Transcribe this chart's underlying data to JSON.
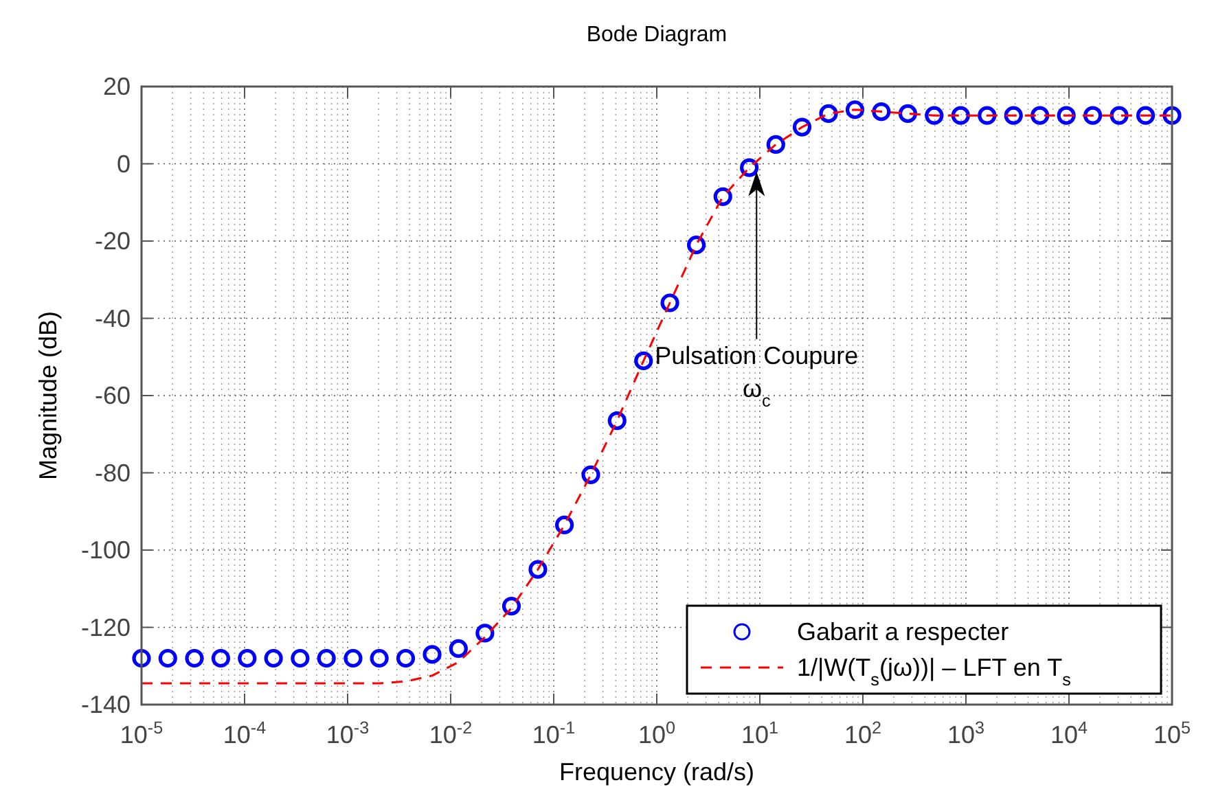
{
  "chart_data": {
    "type": "scatter",
    "title": "Bode Diagram",
    "xlabel": "Frequency (rad/s)",
    "ylabel": "Magnitude (dB)",
    "log": "x",
    "grid": true,
    "legend": "bottom right",
    "xlim": [
      1e-05,
      100000.0
    ],
    "ylim": [
      -140,
      20
    ],
    "xticks": [
      {
        "value": 1e-05,
        "label": "10$^{-5}$"
      },
      {
        "value": 0.0001,
        "label": "10$^{-4}$"
      },
      {
        "value": 0.001,
        "label": "10$^{-3}$"
      },
      {
        "value": 0.01,
        "label": "10$^{-2}$"
      },
      {
        "value": 0.1,
        "label": "10$^{-1}$"
      },
      {
        "value": 1,
        "label": "10$^{0}$"
      },
      {
        "value": 10,
        "label": "10$^{1}$"
      },
      {
        "value": 100,
        "label": "10$^{2}$"
      },
      {
        "value": 1000,
        "label": "10$^{3}$"
      },
      {
        "value": 10000,
        "label": "10$^{4}$"
      },
      {
        "value": 100000,
        "label": "10$^{5}$"
      }
    ],
    "yticks": [
      -140,
      -120,
      -100,
      -80,
      -60,
      -40,
      -20,
      0,
      20
    ],
    "x": [
      1e-05,
      1.8e-05,
      3.26e-05,
      5.88e-05,
      0.000106,
      0.000191,
      0.000346,
      0.000623,
      0.00113,
      0.00203,
      0.00366,
      0.00661,
      0.0119,
      0.0215,
      0.0389,
      0.0702,
      0.127,
      0.229,
      0.412,
      0.744,
      1.34,
      2.42,
      4.38,
      7.9,
      14.3,
      25.7,
      46.4,
      83.8,
      151,
      273,
      492,
      889,
      1604,
      2894,
      5223,
      9427,
      17013,
      30703,
      55412,
      100000
    ],
    "series": [
      {
        "name": "Gabarit a respecter",
        "marker": "circle",
        "color": "#0000ff",
        "values": [
          -128,
          -128,
          -128,
          -128,
          -128,
          -128,
          -128,
          -128,
          -128,
          -128,
          -128,
          -127,
          -125.5,
          -121.5,
          -114.5,
          -105,
          -93.5,
          -80.5,
          -66.5,
          -51,
          -36,
          -21,
          -8.5,
          -1,
          5,
          9.5,
          13,
          14,
          13.5,
          13,
          12.5,
          12.5,
          12.5,
          12.5,
          12.5,
          12.5,
          12.5,
          12.5,
          12.5,
          12.5
        ]
      },
      {
        "name": "1/|W(T$_{s}$(jω))| – LFT en T$_{s}$",
        "type": "line",
        "line_style": "dashed",
        "color": "#ff0000",
        "values": [
          -134.5,
          -134.5,
          -134.5,
          -134.5,
          -134.5,
          -134.5,
          -134.5,
          -134.5,
          -134.5,
          -134.5,
          -134,
          -132.5,
          -129,
          -122.5,
          -115,
          -105,
          -93.5,
          -80.5,
          -66.5,
          -51,
          -36,
          -21,
          -8.5,
          -1,
          5,
          9.5,
          13,
          14,
          13.5,
          13,
          12.5,
          12.5,
          12.5,
          12.5,
          12.5,
          12.5,
          12.5,
          12.5,
          12.5,
          12.5
        ]
      }
    ],
    "annotations": [
      {
        "text": "Pulsation Coupure\nω$_{c}$",
        "x": 9.3,
        "y": -2
      }
    ]
  }
}
